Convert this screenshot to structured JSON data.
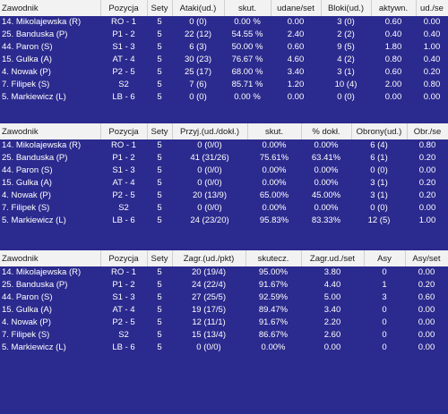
{
  "tables": [
    {
      "headers": [
        "Zawodnik",
        "Pozycja",
        "Sety",
        "Ataki(ud.)",
        "skut.",
        "udane/set",
        "Bloki(ud.)",
        "aktywn.",
        "ud./se"
      ],
      "rows": [
        [
          "14. Mikolajewska (R)",
          "RO - 1",
          "5",
          "0 (0)",
          "0.00 %",
          "0.00",
          "3 (0)",
          "0.60",
          "0.00"
        ],
        [
          "25. Banduska (P)",
          "P1 - 2",
          "5",
          "22 (12)",
          "54.55 %",
          "2.40",
          "2 (2)",
          "0.40",
          "0.40"
        ],
        [
          "44. Paron (S)",
          "S1 - 3",
          "5",
          "6 (3)",
          "50.00 %",
          "0.60",
          "9 (5)",
          "1.80",
          "1.00"
        ],
        [
          "15. Gulka (A)",
          "AT - 4",
          "5",
          "30 (23)",
          "76.67 %",
          "4.60",
          "4 (2)",
          "0.80",
          "0.40"
        ],
        [
          "4. Nowak (P)",
          "P2 - 5",
          "5",
          "25 (17)",
          "68.00 %",
          "3.40",
          "3 (1)",
          "0.60",
          "0.20"
        ],
        [
          "7. Filipek (S)",
          "S2",
          "5",
          "7 (6)",
          "85.71 %",
          "1.20",
          "10 (4)",
          "2.00",
          "0.80"
        ],
        [
          "5. Markiewicz (L)",
          "LB - 6",
          "5",
          "0 (0)",
          "0.00 %",
          "0.00",
          "0 (0)",
          "0.00",
          "0.00"
        ]
      ]
    },
    {
      "headers": [
        "Zawodnik",
        "Pozycja",
        "Sety",
        "Przyj.(ud./dokł.)",
        "skut.",
        "% dokł.",
        "Obrony(ud.)",
        "Obr./se"
      ],
      "rows": [
        [
          "14. Mikolajewska (R)",
          "RO - 1",
          "5",
          "0 (0/0)",
          "0.00%",
          "0.00%",
          "6 (4)",
          "0.80"
        ],
        [
          "25. Banduska (P)",
          "P1 - 2",
          "5",
          "41 (31/26)",
          "75.61%",
          "63.41%",
          "6 (1)",
          "0.20"
        ],
        [
          "44. Paron (S)",
          "S1 - 3",
          "5",
          "0 (0/0)",
          "0.00%",
          "0.00%",
          "0 (0)",
          "0.00"
        ],
        [
          "15. Gulka (A)",
          "AT - 4",
          "5",
          "0 (0/0)",
          "0.00%",
          "0.00%",
          "3 (1)",
          "0.20"
        ],
        [
          "4. Nowak (P)",
          "P2 - 5",
          "5",
          "20 (13/9)",
          "65.00%",
          "45.00%",
          "3 (1)",
          "0.20"
        ],
        [
          "7. Filipek (S)",
          "S2",
          "5",
          "0 (0/0)",
          "0.00%",
          "0.00%",
          "0 (0)",
          "0.00"
        ],
        [
          "5. Markiewicz (L)",
          "LB - 6",
          "5",
          "24 (23/20)",
          "95.83%",
          "83.33%",
          "12 (5)",
          "1.00"
        ]
      ]
    },
    {
      "headers": [
        "Zawodnik",
        "Pozycja",
        "Sety",
        "Zagr.(ud./pkt)",
        "skutecz.",
        "Zagr.ud./set",
        "Asy",
        "Asy/set"
      ],
      "rows": [
        [
          "14. Mikolajewska (R)",
          "RO - 1",
          "5",
          "20 (19/4)",
          "95.00%",
          "3.80",
          "0",
          "0.00"
        ],
        [
          "25. Banduska (P)",
          "P1 - 2",
          "5",
          "24 (22/4)",
          "91.67%",
          "4.40",
          "1",
          "0.20"
        ],
        [
          "44. Paron (S)",
          "S1 - 3",
          "5",
          "27 (25/5)",
          "92.59%",
          "5.00",
          "3",
          "0.60"
        ],
        [
          "15. Gulka (A)",
          "AT - 4",
          "5",
          "19 (17/5)",
          "89.47%",
          "3.40",
          "0",
          "0.00"
        ],
        [
          "4. Nowak (P)",
          "P2 - 5",
          "5",
          "12 (11/1)",
          "91.67%",
          "2.20",
          "0",
          "0.00"
        ],
        [
          "7. Filipek (S)",
          "S2",
          "5",
          "15 (13/4)",
          "86.67%",
          "2.60",
          "0",
          "0.00"
        ],
        [
          "5. Markiewicz (L)",
          "LB - 6",
          "5",
          "0 (0/0)",
          "0.00%",
          "0.00",
          "0",
          "0.00"
        ]
      ]
    }
  ]
}
